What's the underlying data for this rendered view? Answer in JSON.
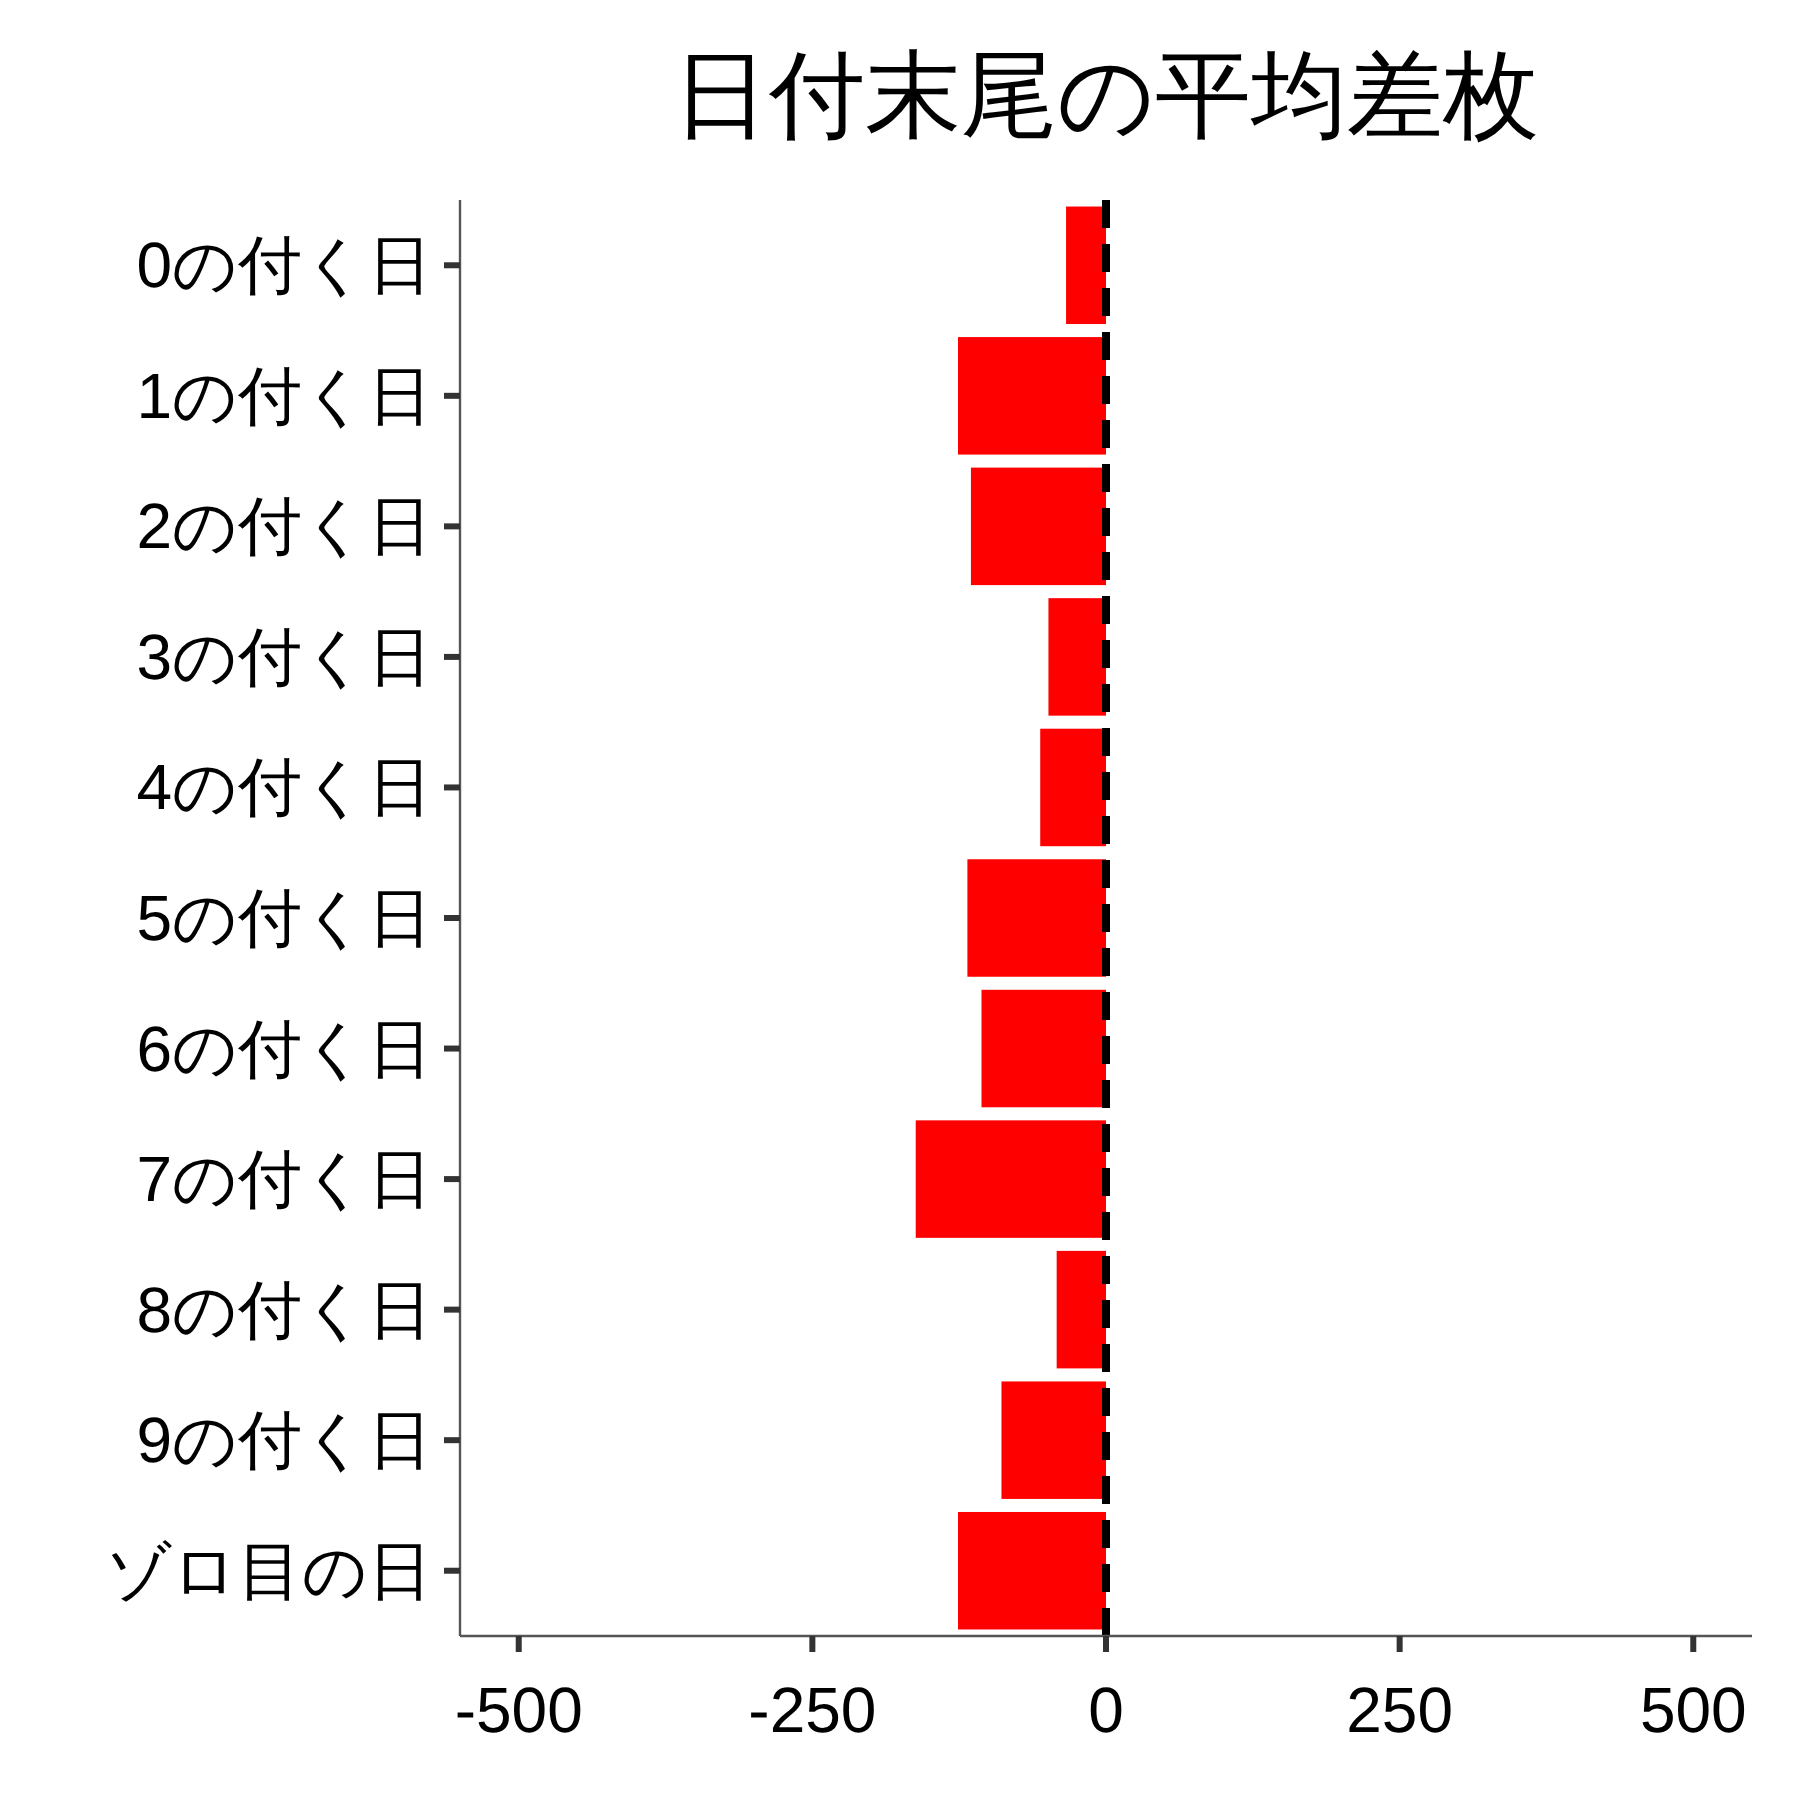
{
  "chart_data": {
    "type": "bar",
    "orientation": "horizontal",
    "title": "日付末尾の平均差枚",
    "categories": [
      "0の付く日",
      "1の付く日",
      "2の付く日",
      "3の付く日",
      "4の付く日",
      "5の付く日",
      "6の付く日",
      "7の付く日",
      "8の付く日",
      "9の付く日",
      "ゾロ目の日"
    ],
    "values": [
      -34,
      -126,
      -115,
      -49,
      -56,
      -118,
      -106,
      -162,
      -42,
      -89,
      -126
    ],
    "color": "#ff0000",
    "xlim": [
      -550,
      550
    ],
    "xticks": [
      -500,
      -250,
      0,
      250,
      500
    ],
    "ref_lines": [
      {
        "axis": "x",
        "value": 0,
        "color": "#000000",
        "line_style": "dashed"
      }
    ]
  }
}
